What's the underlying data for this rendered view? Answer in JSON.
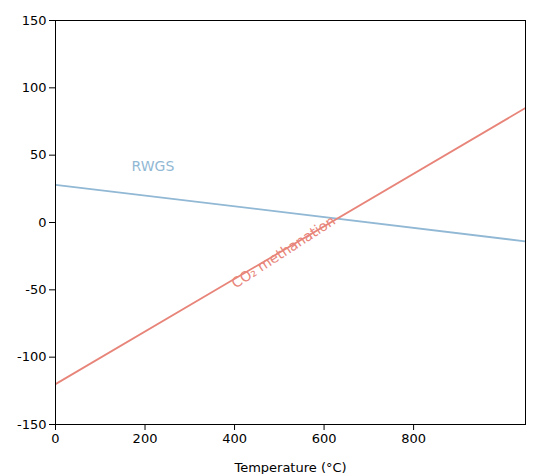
{
  "chart_data": {
    "type": "line",
    "xlabel": "Temperature (°C)",
    "x": [
      0,
      1050
    ],
    "series": [
      {
        "color": "#91b8d4",
        "values": [
          28,
          -14
        ]
      },
      {
        "color": "#e8857a",
        "values": [
          -120,
          85
        ]
      }
    ],
    "xlim": [
      0,
      1050
    ],
    "ylim": [
      -150,
      150
    ],
    "xticks": [
      0,
      200,
      400,
      600,
      800
    ],
    "yticks": [
      -150,
      -100,
      -50,
      0,
      50,
      100,
      150
    ],
    "annotations": [
      {
        "text": "RWGS",
        "x": 170,
        "y": 38,
        "color": "#91b8d4"
      },
      {
        "text": "CO₂ methanation",
        "x": 390,
        "y": -43,
        "color": "#e8857a"
      }
    ]
  }
}
